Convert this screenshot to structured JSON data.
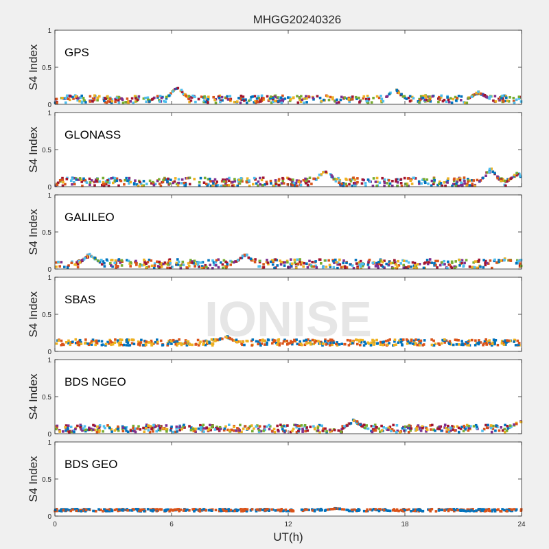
{
  "figure": {
    "title": "MHGG20240326",
    "xlabel": "UT(h)",
    "watermark": "IONISE"
  },
  "chart_data": {
    "type": "scatter",
    "xlim": [
      0,
      24
    ],
    "xticks": [
      "0",
      "6",
      "12",
      "18",
      "24"
    ],
    "ylim": [
      0,
      1
    ],
    "yticks": [
      "0",
      "0.5",
      "1"
    ],
    "ylabel": "S4 Index",
    "grid": false,
    "series_colors": [
      "#0072BD",
      "#D95319",
      "#EDB120",
      "#7E2F8E",
      "#77AC30",
      "#4DBEEE",
      "#A2142F"
    ],
    "panels": [
      {
        "label": "GPS",
        "baseline": 0.07,
        "spread": 0.05,
        "peaks": [
          {
            "x": 6.3,
            "y": 0.26
          },
          {
            "x": 17.5,
            "y": 0.22
          },
          {
            "x": 21.8,
            "y": 0.18
          }
        ],
        "colors": 7
      },
      {
        "label": "GLONASS",
        "baseline": 0.06,
        "spread": 0.06,
        "peaks": [
          {
            "x": 13.9,
            "y": 0.26
          },
          {
            "x": 22.4,
            "y": 0.26
          },
          {
            "x": 23.8,
            "y": 0.2
          }
        ],
        "colors": 7
      },
      {
        "label": "GALILEO",
        "baseline": 0.07,
        "spread": 0.06,
        "peaks": [
          {
            "x": 1.8,
            "y": 0.22
          },
          {
            "x": 9.8,
            "y": 0.21
          },
          {
            "x": 23.2,
            "y": 0.15
          }
        ],
        "colors": 7
      },
      {
        "label": "SBAS",
        "baseline": 0.12,
        "spread": 0.04,
        "peaks": [
          {
            "x": 8.8,
            "y": 0.22
          }
        ],
        "colors": 3
      },
      {
        "label": "BDS NGEO",
        "baseline": 0.07,
        "spread": 0.05,
        "peaks": [
          {
            "x": 15.4,
            "y": 0.2
          },
          {
            "x": 23.9,
            "y": 0.18
          }
        ],
        "colors": 7
      },
      {
        "label": "BDS GEO",
        "baseline": 0.08,
        "spread": 0.015,
        "peaks": [
          {
            "x": 14.5,
            "y": 0.11
          }
        ],
        "colors": 2
      }
    ]
  }
}
